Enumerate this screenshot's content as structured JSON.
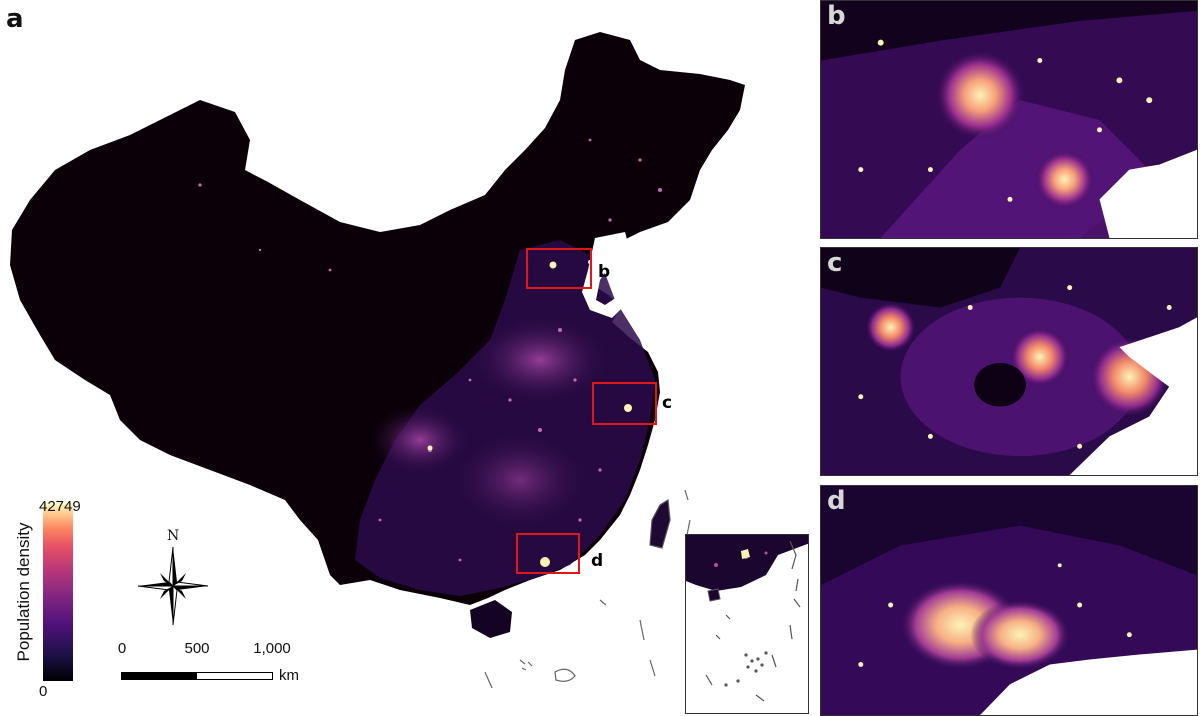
{
  "panels": {
    "a": "a",
    "b": "b",
    "c": "c",
    "d": "d"
  },
  "box_labels": {
    "b": "b",
    "c": "c",
    "d": "d"
  },
  "legend": {
    "title": "Population density",
    "max": "42749",
    "min": "0"
  },
  "north_arrow": {
    "label": "N",
    "icon": "compass-rose-icon"
  },
  "scale_bar": {
    "ticks": [
      "0",
      "500",
      "1,000"
    ],
    "unit": "km"
  },
  "colors": {
    "background": "#000004",
    "highlight_box": "#e0161b",
    "low": "#1d1147",
    "mid": "#832681",
    "high": "#fcfdbf"
  }
}
